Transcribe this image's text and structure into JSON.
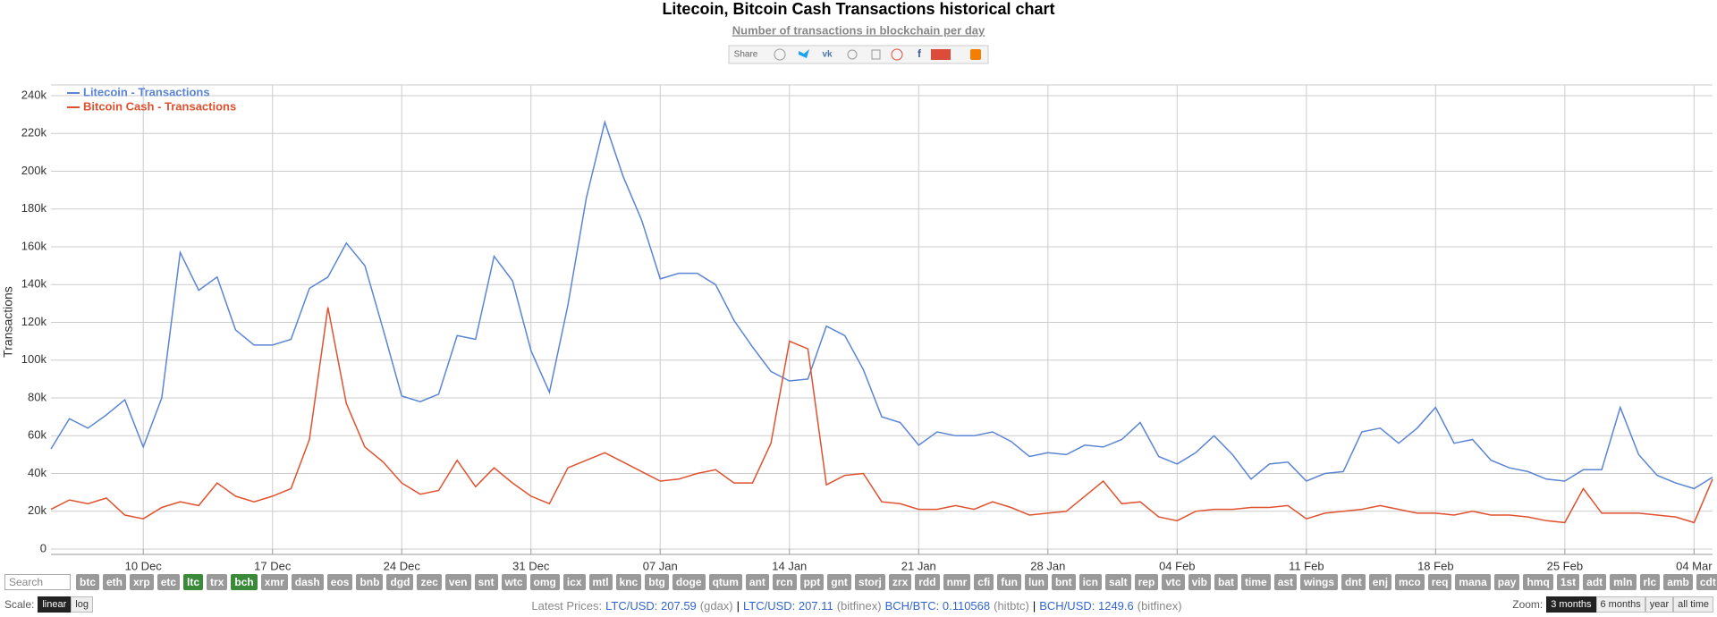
{
  "chart_data": {
    "type": "line",
    "title": "Litecoin, Bitcoin Cash Transactions historical chart",
    "subtitle": "Number of transactions in blockchain per day",
    "y_label": "Transactions",
    "categories": [
      null,
      null,
      null,
      null,
      null,
      "10 Dec",
      null,
      null,
      null,
      null,
      null,
      null,
      "17 Dec",
      null,
      null,
      null,
      null,
      null,
      null,
      "24 Dec",
      null,
      null,
      null,
      null,
      null,
      null,
      "31 Dec",
      null,
      null,
      null,
      null,
      null,
      null,
      "07 Jan",
      null,
      null,
      null,
      null,
      null,
      null,
      "14 Jan",
      null,
      null,
      null,
      null,
      null,
      null,
      "21 Jan",
      null,
      null,
      null,
      null,
      null,
      null,
      "28 Jan",
      null,
      null,
      null,
      null,
      null,
      null,
      "04 Feb",
      null,
      null,
      null,
      null,
      null,
      null,
      "11 Feb",
      null,
      null,
      null,
      null,
      null,
      null,
      "18 Feb",
      null,
      null,
      null,
      null,
      null,
      null,
      "25 Feb",
      null,
      null,
      null,
      null,
      null,
      null,
      "04 Mar",
      null
    ],
    "series": [
      {
        "name": "Litecoin - Transactions",
        "color": "#5b85d4",
        "values": [
          53000,
          69000,
          64000,
          71000,
          79000,
          54000,
          80000,
          157000,
          137000,
          144000,
          116000,
          108000,
          108000,
          111000,
          138000,
          144000,
          162000,
          150000,
          116000,
          81000,
          78000,
          82000,
          113000,
          111000,
          155000,
          142000,
          105000,
          83000,
          129000,
          186000,
          226000,
          197000,
          174000,
          143000,
          146000,
          146000,
          140000,
          121000,
          107000,
          94000,
          89000,
          90000,
          118000,
          113000,
          95000,
          70000,
          67000,
          55000,
          62000,
          60000,
          60000,
          62000,
          57000,
          49000,
          51000,
          50000,
          55000,
          54000,
          58000,
          67000,
          49000,
          45000,
          51000,
          60000,
          50000,
          37000,
          45000,
          46000,
          36000,
          40000,
          41000,
          62000,
          64000,
          56000,
          64000,
          75000,
          56000,
          58000,
          47000,
          43000,
          41000,
          37000,
          36000,
          42000,
          42000,
          75000,
          50000,
          39000,
          35000,
          32000,
          38000
        ]
      },
      {
        "name": "Bitcoin Cash - Transactions",
        "color": "#e0512f",
        "values": [
          21000,
          26000,
          24000,
          27000,
          18000,
          16000,
          22000,
          25000,
          23000,
          35000,
          28000,
          25000,
          28000,
          32000,
          58000,
          128000,
          77000,
          54000,
          46000,
          35000,
          29000,
          31000,
          47000,
          33000,
          43000,
          35000,
          28000,
          24000,
          43000,
          47000,
          51000,
          46000,
          41000,
          36000,
          37000,
          40000,
          42000,
          35000,
          35000,
          56000,
          110000,
          106000,
          34000,
          39000,
          40000,
          25000,
          24000,
          21000,
          21000,
          23000,
          21000,
          25000,
          22000,
          18000,
          19000,
          20000,
          28000,
          36000,
          24000,
          25000,
          17000,
          15000,
          20000,
          21000,
          21000,
          22000,
          22000,
          23000,
          16000,
          19000,
          20000,
          21000,
          23000,
          21000,
          19000,
          19000,
          18000,
          20000,
          18000,
          18000,
          17000,
          15000,
          14000,
          32000,
          19000,
          19000,
          19000,
          18000,
          17000,
          14000,
          37000
        ]
      }
    ],
    "ylim": [
      0,
      240000
    ],
    "yticks": [
      0,
      {
        "value": 20000,
        "label": "20k"
      },
      {
        "value": 40000,
        "label": "40k"
      },
      {
        "value": 60000,
        "label": "60k"
      },
      {
        "value": 80000,
        "label": "80k"
      },
      {
        "value": 100000,
        "label": "100k"
      },
      {
        "value": 120000,
        "label": "120k"
      },
      {
        "value": 140000,
        "label": "140k"
      },
      {
        "value": 160000,
        "label": "160k"
      },
      {
        "value": 180000,
        "label": "180k"
      },
      {
        "value": 200000,
        "label": "200k"
      },
      {
        "value": 220000,
        "label": "220k"
      },
      {
        "value": 240000,
        "label": "240k"
      }
    ],
    "grid": true,
    "legend": "top-left"
  },
  "share_label": "Share",
  "search_placeholder": "Search",
  "coins": [
    {
      "label": "btc"
    },
    {
      "label": "eth"
    },
    {
      "label": "xrp"
    },
    {
      "label": "etc"
    },
    {
      "label": "ltc",
      "selected": true
    },
    {
      "label": "trx"
    },
    {
      "label": "bch",
      "selected": true
    },
    {
      "label": "xmr"
    },
    {
      "label": "dash"
    },
    {
      "label": "eos"
    },
    {
      "label": "bnb"
    },
    {
      "label": "dgd"
    },
    {
      "label": "zec"
    },
    {
      "label": "ven"
    },
    {
      "label": "snt"
    },
    {
      "label": "wtc"
    },
    {
      "label": "omg"
    },
    {
      "label": "icx"
    },
    {
      "label": "mtl"
    },
    {
      "label": "knc"
    },
    {
      "label": "btg"
    },
    {
      "label": "doge"
    },
    {
      "label": "qtum"
    },
    {
      "label": "ant"
    },
    {
      "label": "rcn"
    },
    {
      "label": "ppt"
    },
    {
      "label": "gnt"
    },
    {
      "label": "storj"
    },
    {
      "label": "zrx"
    },
    {
      "label": "rdd"
    },
    {
      "label": "nmr"
    },
    {
      "label": "cfi"
    },
    {
      "label": "fun"
    },
    {
      "label": "lun"
    },
    {
      "label": "bnt"
    },
    {
      "label": "icn"
    },
    {
      "label": "salt"
    },
    {
      "label": "rep"
    },
    {
      "label": "vtc"
    },
    {
      "label": "vib"
    },
    {
      "label": "bat"
    },
    {
      "label": "time"
    },
    {
      "label": "ast"
    },
    {
      "label": "wings"
    },
    {
      "label": "dnt"
    },
    {
      "label": "enj"
    },
    {
      "label": "mco"
    },
    {
      "label": "req"
    },
    {
      "label": "mana"
    },
    {
      "label": "pay"
    },
    {
      "label": "hmq"
    },
    {
      "label": "1st"
    },
    {
      "label": "adt"
    },
    {
      "label": "mln"
    },
    {
      "label": "rlc"
    },
    {
      "label": "amb"
    },
    {
      "label": "cdt"
    }
  ],
  "scale": {
    "label": "Scale:",
    "options": [
      {
        "label": "linear",
        "selected": true
      },
      {
        "label": "log"
      }
    ]
  },
  "prices": {
    "label": "Latest Prices:",
    "items": [
      {
        "text": "LTC/USD: 207.59",
        "source": "(gdax)",
        "sep": "|"
      },
      {
        "text": "LTC/USD: 207.11",
        "source": "(bitfinex)"
      },
      {
        "text": "BCH/BTC: 0.110568",
        "source": "(hitbtc)",
        "sep": "|"
      },
      {
        "text": "BCH/USD: 1249.6",
        "source": "(bitfinex)"
      }
    ]
  },
  "zoom": {
    "label": "Zoom:",
    "options": [
      {
        "label": "3 months",
        "selected": true
      },
      {
        "label": "6 months"
      },
      {
        "label": "year"
      },
      {
        "label": "all time"
      }
    ]
  }
}
